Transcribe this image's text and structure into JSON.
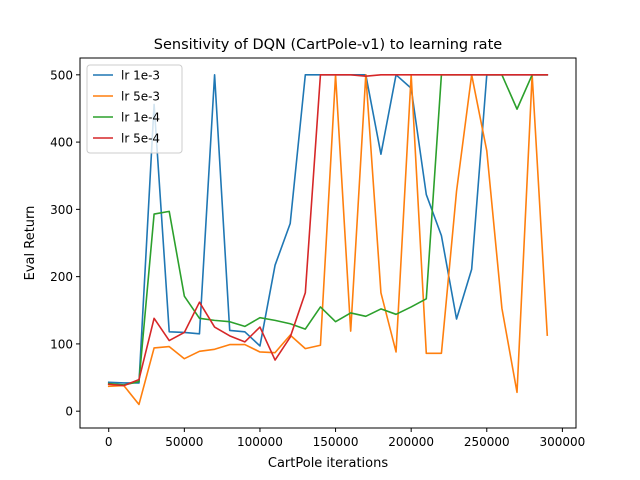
{
  "chart_data": {
    "type": "line",
    "title": "Sensitivity of DQN (CartPole-v1) to learning rate",
    "xlabel": "CartPole iterations",
    "ylabel": "Eval Return",
    "xlim": [
      -19000,
      309000
    ],
    "ylim": [
      -25,
      525
    ],
    "xticks": [
      0,
      50000,
      100000,
      150000,
      200000,
      250000,
      300000
    ],
    "xtick_labels": [
      "0",
      "50000",
      "100000",
      "150000",
      "200000",
      "250000",
      "300000"
    ],
    "yticks": [
      0,
      100,
      200,
      300,
      400,
      500
    ],
    "ytick_labels": [
      "0",
      "100",
      "200",
      "300",
      "400",
      "500"
    ],
    "grid": false,
    "legend_position": "top-left",
    "x": [
      0,
      10000,
      20000,
      30000,
      40000,
      50000,
      60000,
      70000,
      80000,
      90000,
      100000,
      110000,
      120000,
      130000,
      140000,
      150000,
      160000,
      170000,
      180000,
      190000,
      200000,
      210000,
      220000,
      230000,
      240000,
      250000,
      260000,
      270000,
      280000,
      290000
    ],
    "series": [
      {
        "name": "lr 1e-3",
        "color": "#1f77b4",
        "values": [
          43,
          42,
          42,
          456,
          118,
          117,
          115,
          500,
          120,
          118,
          97,
          217,
          279,
          500,
          500,
          500,
          500,
          500,
          382,
          500,
          480,
          322,
          261,
          137,
          211,
          500,
          500,
          500,
          500,
          500
        ]
      },
      {
        "name": "lr 5e-3",
        "color": "#ff7f0e",
        "values": [
          37,
          38,
          10,
          94,
          96,
          78,
          89,
          92,
          99,
          99,
          88,
          87,
          113,
          93,
          98,
          500,
          119,
          500,
          176,
          88,
          500,
          86,
          86,
          327,
          500,
          387,
          153,
          28,
          500,
          113
        ]
      },
      {
        "name": "lr 1e-4",
        "color": "#2ca02c",
        "values": [
          41,
          39,
          44,
          293,
          297,
          171,
          138,
          135,
          133,
          126,
          139,
          135,
          130,
          122,
          155,
          133,
          146,
          141,
          152,
          144,
          155,
          167,
          500,
          500,
          500,
          500,
          500,
          449,
          500,
          500
        ]
      },
      {
        "name": "lr 5e-4",
        "color": "#d62728",
        "values": [
          40,
          38,
          47,
          138,
          105,
          117,
          162,
          125,
          112,
          103,
          125,
          76,
          110,
          176,
          500,
          500,
          500,
          498,
          500,
          500,
          500,
          500,
          500,
          500,
          500,
          500,
          500,
          500,
          500,
          500
        ]
      }
    ]
  }
}
